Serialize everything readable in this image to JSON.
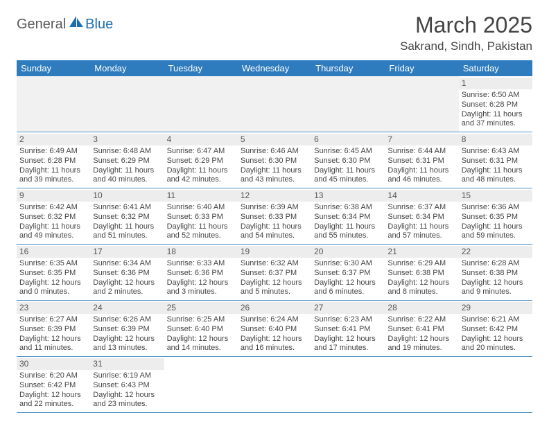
{
  "logo": {
    "part1": "General",
    "part2": "Blue"
  },
  "title": {
    "month": "March 2025",
    "location": "Sakrand, Sindh, Pakistan"
  },
  "colors": {
    "header_bg": "#2e7bbd",
    "header_text": "#ffffff",
    "border": "#4b8fc7",
    "daynum_bg": "#ededed",
    "logo_blue": "#1a6fb3",
    "text": "#3a3a3a"
  },
  "daysOfWeek": [
    "Sunday",
    "Monday",
    "Tuesday",
    "Wednesday",
    "Thursday",
    "Friday",
    "Saturday"
  ],
  "weeks": [
    [
      null,
      null,
      null,
      null,
      null,
      null,
      {
        "n": "1",
        "sr": "Sunrise: 6:50 AM",
        "ss": "Sunset: 6:28 PM",
        "dl": "Daylight: 11 hours and 37 minutes."
      }
    ],
    [
      {
        "n": "2",
        "sr": "Sunrise: 6:49 AM",
        "ss": "Sunset: 6:28 PM",
        "dl": "Daylight: 11 hours and 39 minutes."
      },
      {
        "n": "3",
        "sr": "Sunrise: 6:48 AM",
        "ss": "Sunset: 6:29 PM",
        "dl": "Daylight: 11 hours and 40 minutes."
      },
      {
        "n": "4",
        "sr": "Sunrise: 6:47 AM",
        "ss": "Sunset: 6:29 PM",
        "dl": "Daylight: 11 hours and 42 minutes."
      },
      {
        "n": "5",
        "sr": "Sunrise: 6:46 AM",
        "ss": "Sunset: 6:30 PM",
        "dl": "Daylight: 11 hours and 43 minutes."
      },
      {
        "n": "6",
        "sr": "Sunrise: 6:45 AM",
        "ss": "Sunset: 6:30 PM",
        "dl": "Daylight: 11 hours and 45 minutes."
      },
      {
        "n": "7",
        "sr": "Sunrise: 6:44 AM",
        "ss": "Sunset: 6:31 PM",
        "dl": "Daylight: 11 hours and 46 minutes."
      },
      {
        "n": "8",
        "sr": "Sunrise: 6:43 AM",
        "ss": "Sunset: 6:31 PM",
        "dl": "Daylight: 11 hours and 48 minutes."
      }
    ],
    [
      {
        "n": "9",
        "sr": "Sunrise: 6:42 AM",
        "ss": "Sunset: 6:32 PM",
        "dl": "Daylight: 11 hours and 49 minutes."
      },
      {
        "n": "10",
        "sr": "Sunrise: 6:41 AM",
        "ss": "Sunset: 6:32 PM",
        "dl": "Daylight: 11 hours and 51 minutes."
      },
      {
        "n": "11",
        "sr": "Sunrise: 6:40 AM",
        "ss": "Sunset: 6:33 PM",
        "dl": "Daylight: 11 hours and 52 minutes."
      },
      {
        "n": "12",
        "sr": "Sunrise: 6:39 AM",
        "ss": "Sunset: 6:33 PM",
        "dl": "Daylight: 11 hours and 54 minutes."
      },
      {
        "n": "13",
        "sr": "Sunrise: 6:38 AM",
        "ss": "Sunset: 6:34 PM",
        "dl": "Daylight: 11 hours and 55 minutes."
      },
      {
        "n": "14",
        "sr": "Sunrise: 6:37 AM",
        "ss": "Sunset: 6:34 PM",
        "dl": "Daylight: 11 hours and 57 minutes."
      },
      {
        "n": "15",
        "sr": "Sunrise: 6:36 AM",
        "ss": "Sunset: 6:35 PM",
        "dl": "Daylight: 11 hours and 59 minutes."
      }
    ],
    [
      {
        "n": "16",
        "sr": "Sunrise: 6:35 AM",
        "ss": "Sunset: 6:35 PM",
        "dl": "Daylight: 12 hours and 0 minutes."
      },
      {
        "n": "17",
        "sr": "Sunrise: 6:34 AM",
        "ss": "Sunset: 6:36 PM",
        "dl": "Daylight: 12 hours and 2 minutes."
      },
      {
        "n": "18",
        "sr": "Sunrise: 6:33 AM",
        "ss": "Sunset: 6:36 PM",
        "dl": "Daylight: 12 hours and 3 minutes."
      },
      {
        "n": "19",
        "sr": "Sunrise: 6:32 AM",
        "ss": "Sunset: 6:37 PM",
        "dl": "Daylight: 12 hours and 5 minutes."
      },
      {
        "n": "20",
        "sr": "Sunrise: 6:30 AM",
        "ss": "Sunset: 6:37 PM",
        "dl": "Daylight: 12 hours and 6 minutes."
      },
      {
        "n": "21",
        "sr": "Sunrise: 6:29 AM",
        "ss": "Sunset: 6:38 PM",
        "dl": "Daylight: 12 hours and 8 minutes."
      },
      {
        "n": "22",
        "sr": "Sunrise: 6:28 AM",
        "ss": "Sunset: 6:38 PM",
        "dl": "Daylight: 12 hours and 9 minutes."
      }
    ],
    [
      {
        "n": "23",
        "sr": "Sunrise: 6:27 AM",
        "ss": "Sunset: 6:39 PM",
        "dl": "Daylight: 12 hours and 11 minutes."
      },
      {
        "n": "24",
        "sr": "Sunrise: 6:26 AM",
        "ss": "Sunset: 6:39 PM",
        "dl": "Daylight: 12 hours and 13 minutes."
      },
      {
        "n": "25",
        "sr": "Sunrise: 6:25 AM",
        "ss": "Sunset: 6:40 PM",
        "dl": "Daylight: 12 hours and 14 minutes."
      },
      {
        "n": "26",
        "sr": "Sunrise: 6:24 AM",
        "ss": "Sunset: 6:40 PM",
        "dl": "Daylight: 12 hours and 16 minutes."
      },
      {
        "n": "27",
        "sr": "Sunrise: 6:23 AM",
        "ss": "Sunset: 6:41 PM",
        "dl": "Daylight: 12 hours and 17 minutes."
      },
      {
        "n": "28",
        "sr": "Sunrise: 6:22 AM",
        "ss": "Sunset: 6:41 PM",
        "dl": "Daylight: 12 hours and 19 minutes."
      },
      {
        "n": "29",
        "sr": "Sunrise: 6:21 AM",
        "ss": "Sunset: 6:42 PM",
        "dl": "Daylight: 12 hours and 20 minutes."
      }
    ],
    [
      {
        "n": "30",
        "sr": "Sunrise: 6:20 AM",
        "ss": "Sunset: 6:42 PM",
        "dl": "Daylight: 12 hours and 22 minutes."
      },
      {
        "n": "31",
        "sr": "Sunrise: 6:19 AM",
        "ss": "Sunset: 6:43 PM",
        "dl": "Daylight: 12 hours and 23 minutes."
      },
      null,
      null,
      null,
      null,
      null
    ]
  ]
}
